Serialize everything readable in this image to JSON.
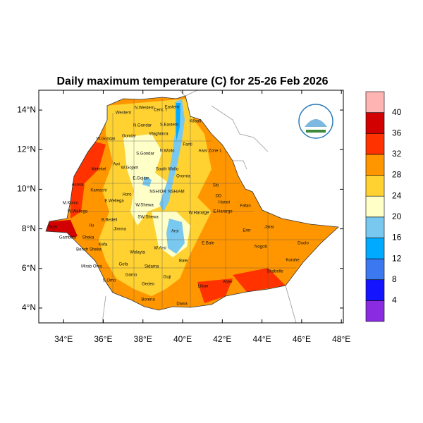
{
  "title": "Daily maximum temperature (C) for 25-26 Feb 2026",
  "map": {
    "xlim": [
      32.75,
      48.1
    ],
    "ylim": [
      3.25,
      15
    ],
    "xticks": [
      {
        "value": 34,
        "label": "34°E"
      },
      {
        "value": 36,
        "label": "36°E"
      },
      {
        "value": 38,
        "label": "38°E"
      },
      {
        "value": 40,
        "label": "40°E"
      },
      {
        "value": 42,
        "label": "42°E"
      },
      {
        "value": 44,
        "label": "44°E"
      },
      {
        "value": 46,
        "label": "46°E"
      },
      {
        "value": 48,
        "label": "48°E"
      }
    ],
    "yticks": [
      {
        "value": 4,
        "label": "4°N"
      },
      {
        "value": 6,
        "label": "6°N"
      },
      {
        "value": 8,
        "label": "8°N"
      },
      {
        "value": 10,
        "label": "10°N"
      },
      {
        "value": 12,
        "label": "12°N"
      },
      {
        "value": 14,
        "label": "14°N"
      }
    ],
    "regions": [
      "Western",
      "N.Western",
      "Cent. T",
      "Eastern",
      "N.Gondar",
      "S.Eastern",
      "Kilbati",
      "Gondar",
      "Waghimra",
      "W.Gondar",
      "S.Gondar",
      "N.Wollo",
      "Awsi Zone 1",
      "Fanti",
      "Metekel",
      "Awi",
      "W.Gojam",
      "South Wollo",
      "Oromia",
      "E.Gojam",
      "Siti",
      "Asosa",
      "Kamashi",
      "NSH/OR",
      "NSH/AM",
      "DD",
      "Horo",
      "Harari",
      "Fafan",
      "W.Wellega",
      "E.Wellega",
      "W.Shewa",
      "W.Hararge",
      "E.Hararge",
      "M.Komo",
      "B.Bedell",
      "SW.Shewa",
      "Ilu",
      "Jimma",
      "Arsi",
      "Erer",
      "Jarar",
      "Nuer",
      "Gambela",
      "Sheka",
      "Kefa",
      "Bench Sheka",
      "E.Bale",
      "Nogob",
      "Doolo",
      "W.Arsi",
      "Wolayta",
      "Sidama",
      "Bale",
      "Korahe",
      "Mirab Omo",
      "Gofa",
      "Gamo",
      "Gedeo",
      "Shabelle",
      "S.Omo",
      "Guji",
      "Liban",
      "Afder",
      "Borena",
      "Dawa"
    ]
  },
  "colorbar": {
    "levels": [
      4,
      8,
      12,
      16,
      20,
      24,
      28,
      32,
      36,
      40
    ],
    "colors": [
      "#8a2be2",
      "#1414ff",
      "#3c78f0",
      "#00aaff",
      "#78c8f0",
      "#ffffc8",
      "#ffd232",
      "#ff9600",
      "#ff3200",
      "#d20000",
      "#ffb4b4"
    ]
  }
}
